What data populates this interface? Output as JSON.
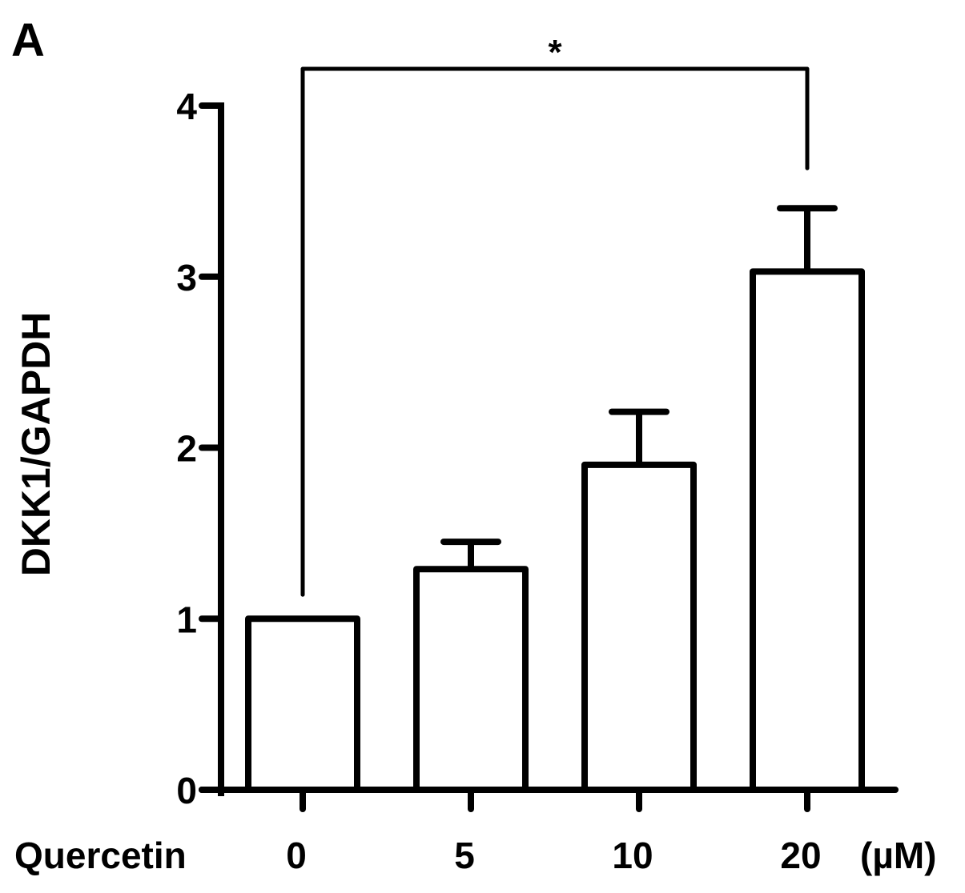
{
  "panel_label": "A",
  "colors": {
    "ink": "#000000",
    "bar_fill": "#ffffff"
  },
  "chart_data": {
    "type": "bar",
    "title": "",
    "ylabel": "DKK1/GAPDH",
    "xlabel": "Quercetin",
    "x_unit": "(µM)",
    "categories": [
      "0",
      "5",
      "10",
      "20"
    ],
    "values": [
      1.0,
      1.29,
      1.9,
      3.03
    ],
    "error_upper": [
      0.0,
      0.16,
      0.31,
      0.37
    ],
    "ylim": [
      0,
      4
    ],
    "yticks": [
      0,
      1,
      2,
      3,
      4
    ],
    "ytick_labels": [
      "0",
      "1",
      "2",
      "3",
      "4"
    ],
    "grid": false,
    "legend": "none",
    "annotations": [
      {
        "type": "significance_bracket",
        "from_category": "0",
        "to_category": "20",
        "label": "*"
      }
    ]
  }
}
